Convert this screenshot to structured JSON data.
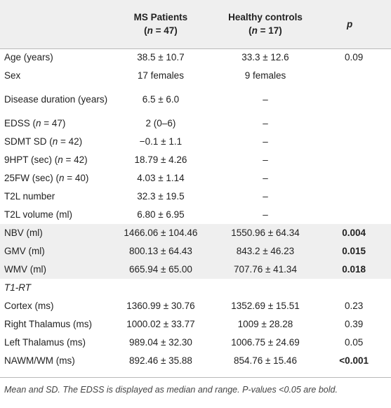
{
  "header": {
    "col1_line1": "MS Patients",
    "col1_line2_pre": "(",
    "col1_n": "n",
    "col1_line2_post": " = 47)",
    "col2_line1": "Healthy controls",
    "col2_line2_pre": "(",
    "col2_n": "n",
    "col2_line2_post": " = 17)",
    "col3": "p"
  },
  "rows": [
    {
      "label": "Age (years)",
      "ms": "38.5 ± 10.7",
      "hc": "33.3 ± 12.6",
      "p": "0.09",
      "bold": false
    },
    {
      "label": "Sex",
      "ms": "17 females",
      "hc": "9 females",
      "p": "",
      "bold": false
    },
    {
      "label": "Disease duration (years)",
      "ms": "6.5 ± 6.0",
      "hc": "–",
      "p": "",
      "bold": false
    },
    {
      "label_pre": "EDSS (",
      "label_n": "n",
      "label_post": " = 47)",
      "ms": "2 (0–6)",
      "hc": "–",
      "p": "",
      "bold": false
    },
    {
      "label_pre": "SDMT SD (",
      "label_n": "n",
      "label_post": " = 42)",
      "ms": "−0.1 ± 1.1",
      "hc": "–",
      "p": "",
      "bold": false
    },
    {
      "label_pre": "9HPT (sec) (",
      "label_n": "n",
      "label_post": " = 42)",
      "ms": "18.79 ± 4.26",
      "hc": "–",
      "p": "",
      "bold": false
    },
    {
      "label_pre": "25FW (sec) (",
      "label_n": "n",
      "label_post": " = 40)",
      "ms": "4.03 ± 1.14",
      "hc": "–",
      "p": "",
      "bold": false
    },
    {
      "label": "T2L number",
      "ms": "32.3 ± 19.5",
      "hc": "–",
      "p": "",
      "bold": false
    },
    {
      "label": "T2L volume (ml)",
      "ms": "6.80 ± 6.95",
      "hc": "–",
      "p": "",
      "bold": false
    },
    {
      "label": "NBV (ml)",
      "ms": "1466.06 ± 104.46",
      "hc": "1550.96 ± 64.34",
      "p": "0.004",
      "bold": true
    },
    {
      "label": "GMV (ml)",
      "ms": "800.13 ± 64.43",
      "hc": "843.2 ± 46.23",
      "p": "0.015",
      "bold": true
    },
    {
      "label": "WMV (ml)",
      "ms": "665.94 ± 65.00",
      "hc": "707.76 ± 41.34",
      "p": "0.018",
      "bold": true
    },
    {
      "label": "T1-RT",
      "ms": "",
      "hc": "",
      "p": "",
      "bold": false
    },
    {
      "label": "Cortex (ms)",
      "ms": "1360.99 ± 30.76",
      "hc": "1352.69 ± 15.51",
      "p": "0.23",
      "bold": false
    },
    {
      "label": "Right Thalamus (ms)",
      "ms": "1000.02 ± 33.77",
      "hc": "1009 ± 28.28",
      "p": "0.39",
      "bold": false
    },
    {
      "label": "Left Thalamus (ms)",
      "ms": "989.04 ± 32.30",
      "hc": "1006.75 ± 24.69",
      "p": "0.05",
      "bold": false
    },
    {
      "label": "NAWM/WM (ms)",
      "ms": "892.46 ± 35.88",
      "hc": "854.76 ± 15.46",
      "p": "<0.001",
      "bold": true
    }
  ],
  "footnote": "Mean and SD. The EDSS is displayed as median and range. P-values <0.05 are bold."
}
